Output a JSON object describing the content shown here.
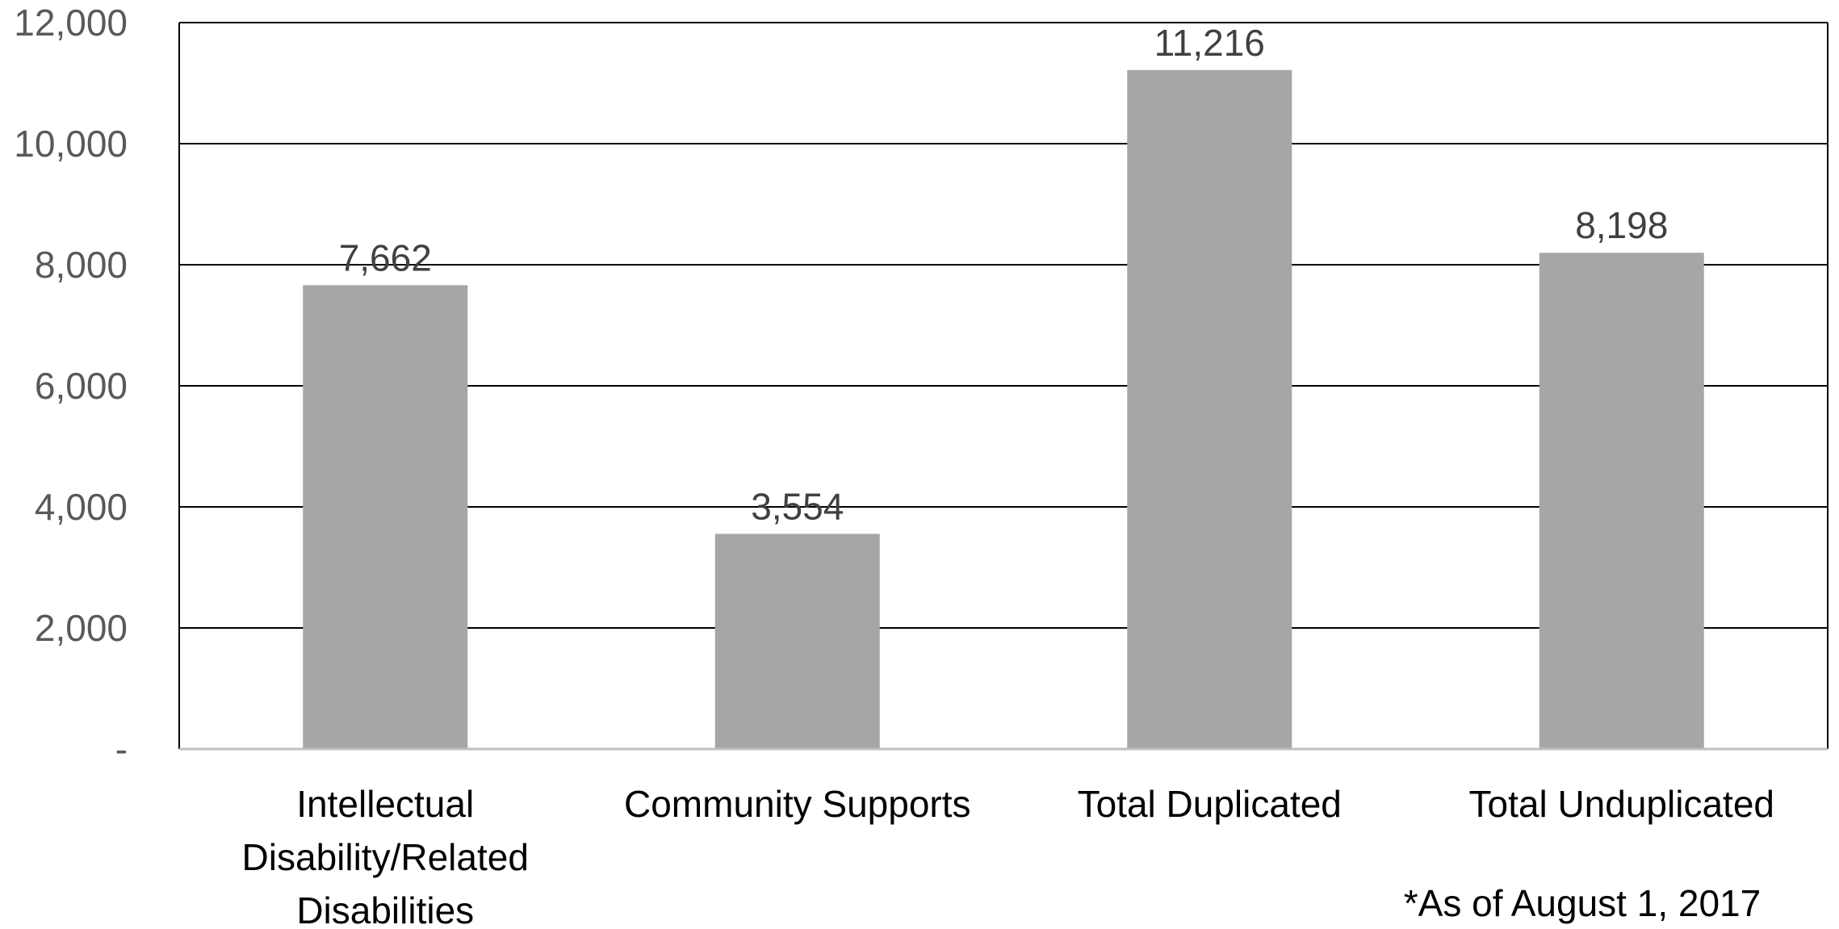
{
  "chart_data": {
    "type": "bar",
    "categories": [
      [
        "Intellectual",
        "Disability/Related",
        "Disabilities"
      ],
      [
        "Community Supports"
      ],
      [
        "Total Duplicated"
      ],
      [
        "Total Unduplicated"
      ]
    ],
    "values": [
      7662,
      3554,
      11216,
      8198
    ],
    "value_labels": [
      "7,662",
      "3,554",
      "11,216",
      "8,198"
    ],
    "ylim": [
      0,
      12000
    ],
    "yticks": [
      0,
      2000,
      4000,
      6000,
      8000,
      10000,
      12000
    ],
    "ytick_labels": [
      "-",
      "2,000",
      "4,000",
      "6,000",
      "8,000",
      "10,000",
      "12,000"
    ],
    "grid": true,
    "legend": "none",
    "annotation": "*As of August 1, 2017",
    "colors": {
      "bar": "#a6a6a6",
      "grid": "#000000",
      "axis": "#bfbfbf"
    }
  }
}
